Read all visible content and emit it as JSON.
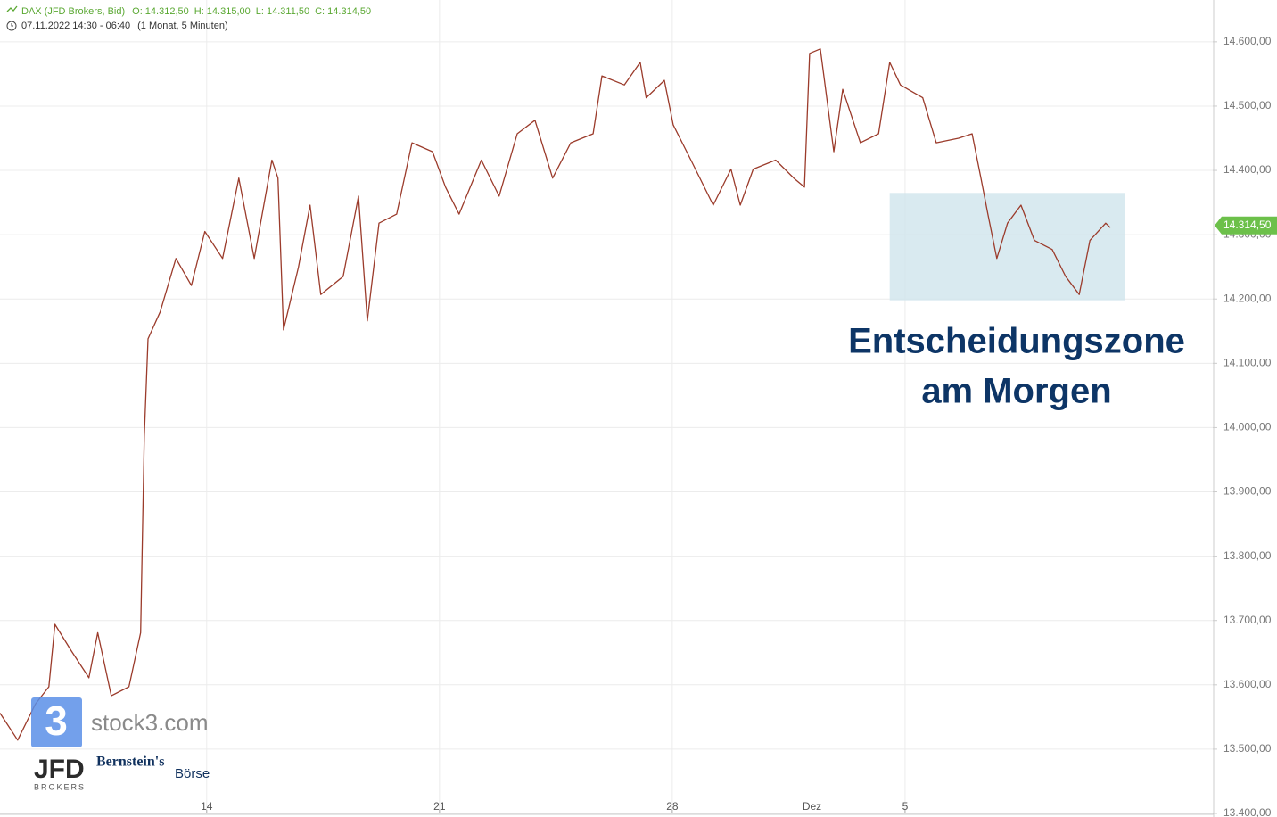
{
  "header": {
    "title": "DAX (JFD Brokers, Bid)",
    "open": "O: 14.312,50",
    "high": "H: 14.315,00",
    "low": "L: 14.311,50",
    "close": "C: 14.314,50",
    "range": "07.11.2022 14:30 - 06:40",
    "period": "(1 Monat, 5 Minuten)"
  },
  "chart_data": {
    "type": "line",
    "x": [
      0.56,
      0.94,
      1.32,
      1.61,
      1.74,
      2.09,
      2.47,
      2.66,
      2.95,
      3.33,
      3.58,
      3.66,
      3.74,
      4.0,
      4.34,
      4.67,
      4.96,
      5.34,
      5.69,
      6.02,
      6.4,
      6.53,
      6.65,
      6.97,
      7.22,
      7.45,
      7.93,
      8.26,
      8.45,
      8.7,
      9.08,
      9.41,
      9.85,
      10.13,
      10.42,
      10.9,
      11.28,
      11.67,
      12.05,
      12.43,
      12.82,
      13.3,
      13.49,
      13.97,
      14.31,
      14.44,
      14.83,
      15.02,
      15.4,
      15.88,
      16.26,
      16.46,
      16.74,
      17.22,
      17.61,
      17.84,
      17.95,
      18.18,
      18.47,
      18.66,
      19.04,
      19.43,
      19.67,
      19.9,
      20.38,
      20.67,
      21.15,
      21.44,
      21.63,
      21.78,
      21.97,
      22.2,
      22.49,
      22.78,
      23.16,
      23.45,
      23.74,
      23.97,
      24.31,
      24.41
    ],
    "series": [
      {
        "color": "#9b3b2b",
        "values": [
          13556,
          13514,
          13570,
          13597,
          13694,
          13653,
          13611,
          13681,
          13583,
          13597,
          13681,
          13986,
          14138,
          14180,
          14263,
          14221,
          14305,
          14263,
          14388,
          14263,
          14416,
          14388,
          14152,
          14249,
          14346,
          14207,
          14235,
          14360,
          14166,
          14318,
          14332,
          14443,
          14429,
          14374,
          14332,
          14416,
          14360,
          14457,
          14478,
          14388,
          14443,
          14457,
          14547,
          14533,
          14568,
          14513,
          14540,
          14471,
          14416,
          14346,
          14402,
          14346,
          14402,
          14416,
          14388,
          14374,
          14582,
          14589,
          14429,
          14526,
          14443,
          14457,
          14568,
          14533,
          14513,
          14443,
          14450,
          14457,
          14388,
          14332,
          14263,
          14318,
          14346,
          14291,
          14277,
          14235,
          14207,
          14291,
          14318,
          14311
        ]
      }
    ],
    "xlim": [
      0.56,
      26.61
    ],
    "ylim": [
      13400,
      14665
    ],
    "xticks": [
      {
        "value": 5,
        "label": "14"
      },
      {
        "value": 10,
        "label": "21"
      },
      {
        "value": 15,
        "label": "28"
      },
      {
        "value": 18,
        "label": "Dez"
      },
      {
        "value": 20,
        "label": "5"
      }
    ],
    "yticks": [
      {
        "value": 13400,
        "label": "13.400,00"
      },
      {
        "value": 13500,
        "label": "13.500,00"
      },
      {
        "value": 13600,
        "label": "13.600,00"
      },
      {
        "value": 13700,
        "label": "13.700,00"
      },
      {
        "value": 13800,
        "label": "13.800,00"
      },
      {
        "value": 13900,
        "label": "13.900,00"
      },
      {
        "value": 14000,
        "label": "14.000,00"
      },
      {
        "value": 14100,
        "label": "14.100,00"
      },
      {
        "value": 14200,
        "label": "14.200,00"
      },
      {
        "value": 14300,
        "label": "14.300,00"
      },
      {
        "value": 14400,
        "label": "14.400,00"
      },
      {
        "value": 14500,
        "label": "14.500,00"
      },
      {
        "value": 14600,
        "label": "14.600,00"
      }
    ],
    "grid": true,
    "last_price": {
      "value": 14314.5,
      "label": "14.314,50",
      "color": "#6cc04a"
    },
    "zone": {
      "x": [
        19.67,
        24.73
      ],
      "y": [
        14198,
        14365
      ],
      "color": "#cfe5ec"
    },
    "annotation": [
      "Entscheidungszone",
      "am Morgen"
    ]
  },
  "logos": {
    "stock3_digit": "3",
    "stock3": "stock3.com",
    "jfd": "JFD",
    "jfd_sub": "BROKERS",
    "bernstein": "Bernstein's",
    "boerse": "Börse"
  }
}
